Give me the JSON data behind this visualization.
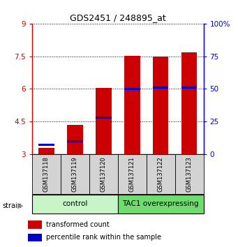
{
  "title": "GDS2451 / 248895_at",
  "samples": [
    "GSM137118",
    "GSM137119",
    "GSM137120",
    "GSM137121",
    "GSM137122",
    "GSM137123"
  ],
  "transformed_counts": [
    3.3,
    4.35,
    6.05,
    7.52,
    7.5,
    7.68
  ],
  "percentile_ranks": [
    3.45,
    3.6,
    4.7,
    6.0,
    6.05,
    6.05
  ],
  "y_min": 3.0,
  "y_max": 9.0,
  "y_ticks": [
    3,
    4.5,
    6,
    7.5,
    9
  ],
  "y_tick_labels": [
    "3",
    "4.5",
    "6",
    "7.5",
    "9"
  ],
  "y2_ticks": [
    0,
    25,
    50,
    75,
    100
  ],
  "y2_tick_labels": [
    "0",
    "25",
    "50",
    "75",
    "100%"
  ],
  "groups": [
    {
      "label": "control",
      "indices": [
        0,
        1,
        2
      ],
      "color": "#c8f5c8"
    },
    {
      "label": "TAC1 overexpressing",
      "indices": [
        3,
        4,
        5
      ],
      "color": "#6edc6e"
    }
  ],
  "bar_color": "#cc0000",
  "percentile_color": "#0000cc",
  "bar_width": 0.55,
  "sample_box_color": "#d3d3d3",
  "legend_items": [
    {
      "color": "#cc0000",
      "label": "transformed count"
    },
    {
      "color": "#0000cc",
      "label": "percentile rank within the sample"
    }
  ]
}
